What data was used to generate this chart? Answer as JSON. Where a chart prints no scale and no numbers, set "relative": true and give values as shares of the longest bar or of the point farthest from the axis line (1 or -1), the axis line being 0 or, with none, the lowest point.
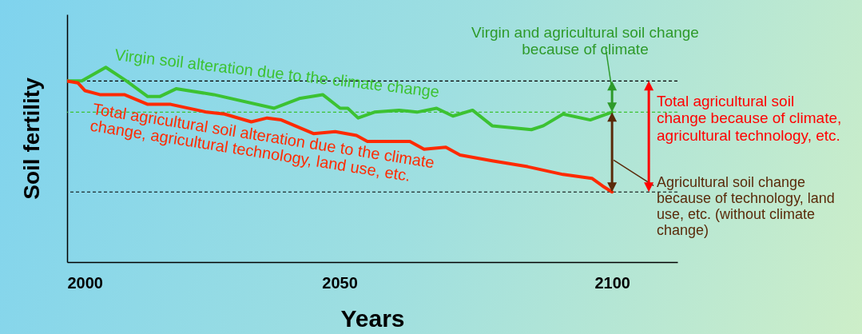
{
  "chart_data": {
    "type": "line",
    "xlabel": "Years",
    "ylabel": "Soil fertility",
    "relative": true,
    "xlim": [
      2000,
      2112
    ],
    "xticks": [
      2000,
      2050,
      2100
    ],
    "grid": false,
    "marker": "none",
    "line_style": "solid",
    "series": [
      {
        "name": "Virgin soil alteration due to the climate change",
        "color": "#3cc232",
        "x": [
          2000,
          2002.7,
          2007.1,
          2010.9,
          2014.8,
          2017,
          2020,
          2026.9,
          2038,
          2042.6,
          2046.9,
          2050.1,
          2051.5,
          2053.4,
          2056.4,
          2060.9,
          2064.2,
          2067.8,
          2070.8,
          2074.4,
          2078,
          2085.2,
          2087.4,
          2091,
          2096,
          2100
        ],
        "values": [
          0.93,
          0.93,
          1,
          0.93,
          0.85,
          0.85,
          0.89,
          0.86,
          0.79,
          0.84,
          0.86,
          0.79,
          0.79,
          0.74,
          0.77,
          0.78,
          0.77,
          0.79,
          0.75,
          0.78,
          0.7,
          0.68,
          0.7,
          0.76,
          0.73,
          0.77
        ]
      },
      {
        "name": "Total agricultural soil alteration due to the climate change, agricultural technology, land use, etc.",
        "color": "#ff2a00",
        "x": [
          2000,
          2002,
          2003.3,
          2006,
          2010.5,
          2014.8,
          2019,
          2025.6,
          2028.9,
          2033.8,
          2036.7,
          2039.3,
          2045.2,
          2049.2,
          2053.1,
          2055.1,
          2061.6,
          2062.9,
          2065.5,
          2069.5,
          2072.1,
          2078,
          2084.5,
          2091,
          2096.3,
          2098.3,
          2100
        ],
        "values": [
          0.93,
          0.92,
          0.88,
          0.86,
          0.86,
          0.81,
          0.81,
          0.77,
          0.76,
          0.72,
          0.74,
          0.73,
          0.66,
          0.67,
          0.65,
          0.62,
          0.62,
          0.62,
          0.58,
          0.59,
          0.55,
          0.52,
          0.49,
          0.45,
          0.43,
          0.39,
          0.36
        ]
      }
    ],
    "ref_lines": [
      {
        "axis": "y",
        "value": 0.93,
        "color": "#000000",
        "line_style": "dashed"
      },
      {
        "axis": "y",
        "value": 0.77,
        "color": "#3cc232",
        "line_style": "dashed"
      },
      {
        "axis": "y",
        "value": 0.36,
        "color": "#000000",
        "line_style": "dashed"
      }
    ],
    "annotations": [
      "Virgin and agricultural soil change because of climate",
      "Total agricultural soil change because of climate, agricultural technology, etc.",
      "Agricultural soil change because of technology, land use, etc. (without climate change)"
    ]
  }
}
